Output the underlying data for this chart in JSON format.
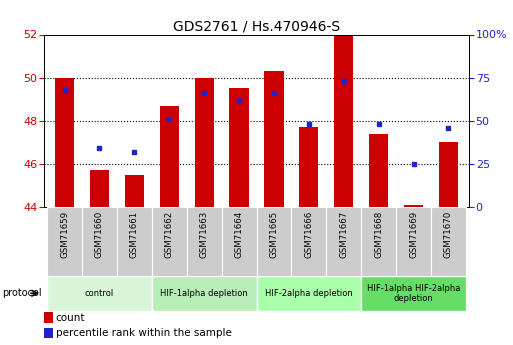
{
  "title": "GDS2761 / Hs.470946-S",
  "samples": [
    "GSM71659",
    "GSM71660",
    "GSM71661",
    "GSM71662",
    "GSM71663",
    "GSM71664",
    "GSM71665",
    "GSM71666",
    "GSM71667",
    "GSM71668",
    "GSM71669",
    "GSM71670"
  ],
  "counts": [
    50.0,
    45.7,
    45.5,
    48.7,
    50.0,
    49.5,
    50.3,
    47.7,
    52.0,
    47.4,
    44.1,
    47.0
  ],
  "percentiles": [
    68.0,
    34.0,
    32.0,
    51.0,
    66.0,
    62.0,
    66.0,
    48.0,
    73.0,
    48.0,
    25.0,
    46.0
  ],
  "ylim_left": [
    44,
    52
  ],
  "ylim_right": [
    0,
    100
  ],
  "yticks_left": [
    44,
    46,
    48,
    50,
    52
  ],
  "yticks_right": [
    0,
    25,
    50,
    75,
    100
  ],
  "bar_color": "#cc0000",
  "dot_color": "#2222cc",
  "bar_width": 0.55,
  "groups": [
    {
      "label": "control",
      "start": 0,
      "end": 3,
      "color": "#d8f5d8"
    },
    {
      "label": "HIF-1alpha depletion",
      "start": 3,
      "end": 6,
      "color": "#b8edb8"
    },
    {
      "label": "HIF-2alpha depletion",
      "start": 6,
      "end": 9,
      "color": "#aaffaa"
    },
    {
      "label": "HIF-1alpha HIF-2alpha\ndepletion",
      "start": 9,
      "end": 12,
      "color": "#66dd66"
    }
  ],
  "background_color": "#ffffff",
  "tick_label_bg": "#cccccc",
  "grid_dotted_at": [
    46,
    48,
    50
  ],
  "title_fontsize": 10,
  "ylabel_left_color": "#cc0000",
  "ylabel_right_color": "#2222cc",
  "legend_count_color": "#cc0000",
  "legend_percentile_color": "#2222cc"
}
